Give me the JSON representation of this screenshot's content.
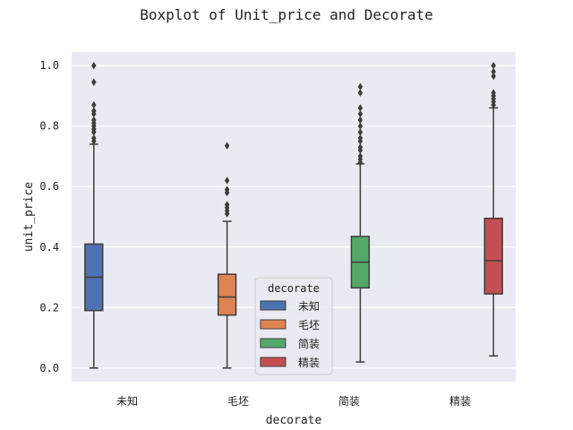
{
  "chart_data": {
    "type": "box",
    "title": "Boxplot of Unit_price and Decorate",
    "xlabel": "decorate",
    "ylabel": "unit_price",
    "ylim": [
      -0.045,
      1.045
    ],
    "yticks": [
      0.0,
      0.2,
      0.4,
      0.6,
      0.8,
      1.0
    ],
    "ytick_labels": [
      "0.0",
      "0.2",
      "0.4",
      "0.6",
      "0.8",
      "1.0"
    ],
    "grid": true,
    "categories": [
      "未知",
      "毛坯",
      "简装",
      "精装"
    ],
    "legend": {
      "title": "decorate",
      "placement": "lower-center"
    },
    "series": [
      {
        "name": "未知",
        "color": "#4c72b0",
        "whisker_low": 0.0,
        "q1": 0.19,
        "median": 0.3,
        "q3": 0.41,
        "whisker_high": 0.74,
        "outliers": [
          0.75,
          0.76,
          0.78,
          0.79,
          0.8,
          0.81,
          0.82,
          0.84,
          0.85,
          0.87,
          0.945,
          1.0
        ]
      },
      {
        "name": "毛坯",
        "color": "#dd8452",
        "whisker_low": 0.0,
        "q1": 0.175,
        "median": 0.235,
        "q3": 0.31,
        "whisker_high": 0.485,
        "outliers": [
          0.51,
          0.52,
          0.53,
          0.54,
          0.58,
          0.59,
          0.62,
          0.735
        ]
      },
      {
        "name": "简装",
        "color": "#55a868",
        "whisker_low": 0.02,
        "q1": 0.265,
        "median": 0.35,
        "q3": 0.435,
        "whisker_high": 0.675,
        "outliers": [
          0.68,
          0.69,
          0.7,
          0.72,
          0.73,
          0.75,
          0.76,
          0.78,
          0.8,
          0.82,
          0.84,
          0.86,
          0.91,
          0.93
        ]
      },
      {
        "name": "精装",
        "color": "#c44e52",
        "whisker_low": 0.04,
        "q1": 0.245,
        "median": 0.355,
        "q3": 0.495,
        "whisker_high": 0.86,
        "outliers": [
          0.87,
          0.88,
          0.89,
          0.9,
          0.91,
          0.965,
          0.98,
          1.0
        ]
      }
    ]
  }
}
